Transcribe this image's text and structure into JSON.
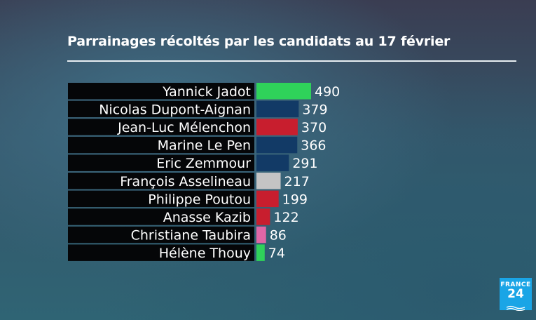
{
  "title": "Parrainages récoltés par les candidats au 17 février",
  "logo": {
    "line1": "FRANCE",
    "line2": "24"
  },
  "chart_data": {
    "type": "bar",
    "orientation": "horizontal",
    "title": "Parrainages récoltés par les candidats au 17 février",
    "xlim": [
      0,
      500
    ],
    "categories": [
      "Yannick Jadot",
      "Nicolas Dupont-Aignan",
      "Jean-Luc Mélenchon",
      "Marine Le Pen",
      "Eric Zemmour",
      "François Asselineau",
      "Philippe Poutou",
      "Anasse Kazib",
      "Christiane Taubira",
      "Hélène Thouy"
    ],
    "values": [
      490,
      379,
      370,
      366,
      291,
      217,
      199,
      122,
      86,
      74
    ],
    "colors": [
      "#2fd25a",
      "#123a66",
      "#c81e2e",
      "#123a66",
      "#123a66",
      "#c4c4c4",
      "#c81e2e",
      "#c81e2e",
      "#e066a6",
      "#2fd25a"
    ]
  }
}
